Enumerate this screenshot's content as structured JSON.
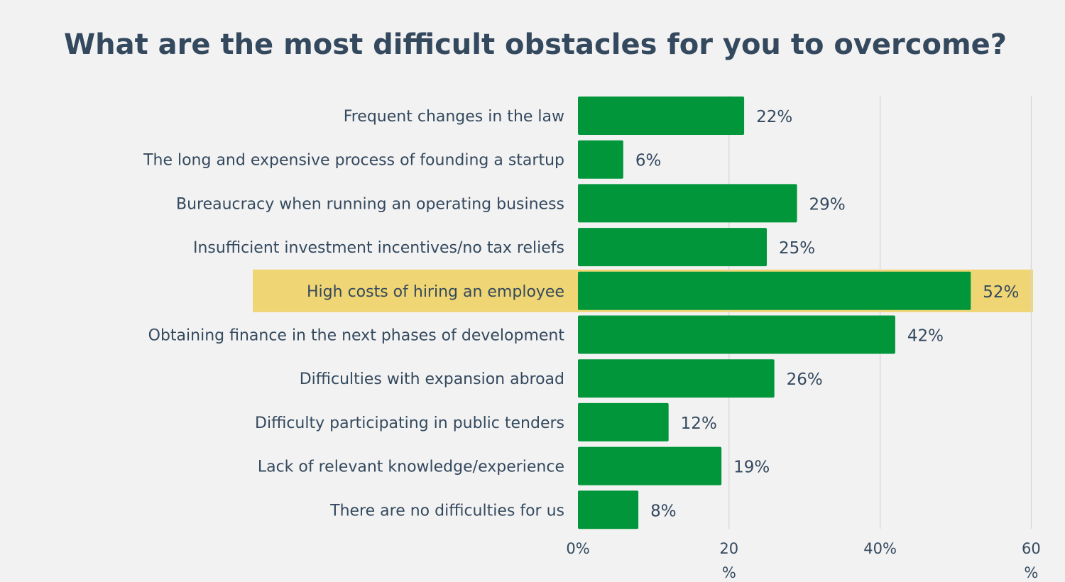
{
  "chart_data": {
    "type": "bar",
    "orientation": "horizontal",
    "title": "What are the most difficult obstacles for you to overcome?",
    "categories": [
      "Frequent changes in the law",
      "The long and expensive process of founding a startup",
      "Bureaucracy when running an operating business",
      "Insufficient investment incentives/no tax reliefs",
      "High costs of hiring an employee",
      "Obtaining finance in the next phases of development",
      "Difficulties with expansion abroad",
      "Difficulty participating in public tenders",
      "Lack of relevant knowledge/experience",
      "There are no difficulties for us"
    ],
    "values": [
      22,
      6,
      29,
      25,
      52,
      42,
      26,
      12,
      19,
      8
    ],
    "value_labels": [
      "22%",
      "6%",
      "29%",
      "25%",
      "52%",
      "42%",
      "26%",
      "12%",
      "19%",
      "8%"
    ],
    "highlighted_category": "High costs of hiring an employee",
    "xlim": [
      0,
      60
    ],
    "xticks": [
      0,
      20,
      40,
      60
    ],
    "xtick_labels": [
      "0%",
      "20\n%",
      "40%",
      "60\n%"
    ],
    "xlabel": "",
    "ylabel": "",
    "grid": true,
    "colors": {
      "bar": "#009639",
      "highlight": "#efd573",
      "text": "#34495e",
      "grid": "#d5d5d5",
      "background": "#f2f2f2"
    }
  }
}
